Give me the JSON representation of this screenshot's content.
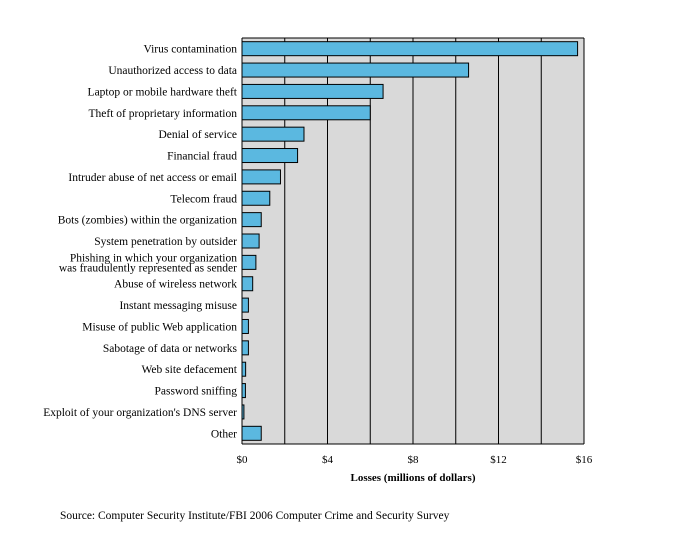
{
  "chart_data": {
    "type": "bar",
    "orientation": "horizontal",
    "categories": [
      "Virus contamination",
      "Unauthorized access to data",
      "Laptop or mobile hardware theft",
      "Theft of proprietary information",
      "Denial of service",
      "Financial fraud",
      "Intruder abuse of net access or email",
      "Telecom fraud",
      "Bots (zombies) within the organization",
      "System penetration by outsider",
      "Phishing in which your organization\nwas fraudulently represented as sender",
      "Abuse of wireless network",
      "Instant messaging misuse",
      "Misuse of public Web application",
      "Sabotage of data or networks",
      "Web site defacement",
      "Password sniffing",
      "Exploit of your organization's DNS server",
      "Other"
    ],
    "values": [
      15.7,
      10.6,
      6.6,
      6.0,
      2.9,
      2.6,
      1.8,
      1.3,
      0.9,
      0.8,
      0.65,
      0.5,
      0.3,
      0.3,
      0.3,
      0.17,
      0.16,
      0.09,
      0.9
    ],
    "xlabel": "Losses (millions of dollars)",
    "xlim": [
      0,
      16
    ],
    "xticks": [
      0,
      4,
      8,
      12,
      16
    ],
    "xtick_labels": [
      "$0",
      "$4",
      "$8",
      "$12",
      "$16"
    ],
    "grid": true,
    "colors": {
      "bar": "#5bb8e0",
      "background": "#d9d9d9",
      "grid": "#000000"
    }
  },
  "source": "Source: Computer Security Institute/FBI 2006 Computer Crime and Security Survey"
}
